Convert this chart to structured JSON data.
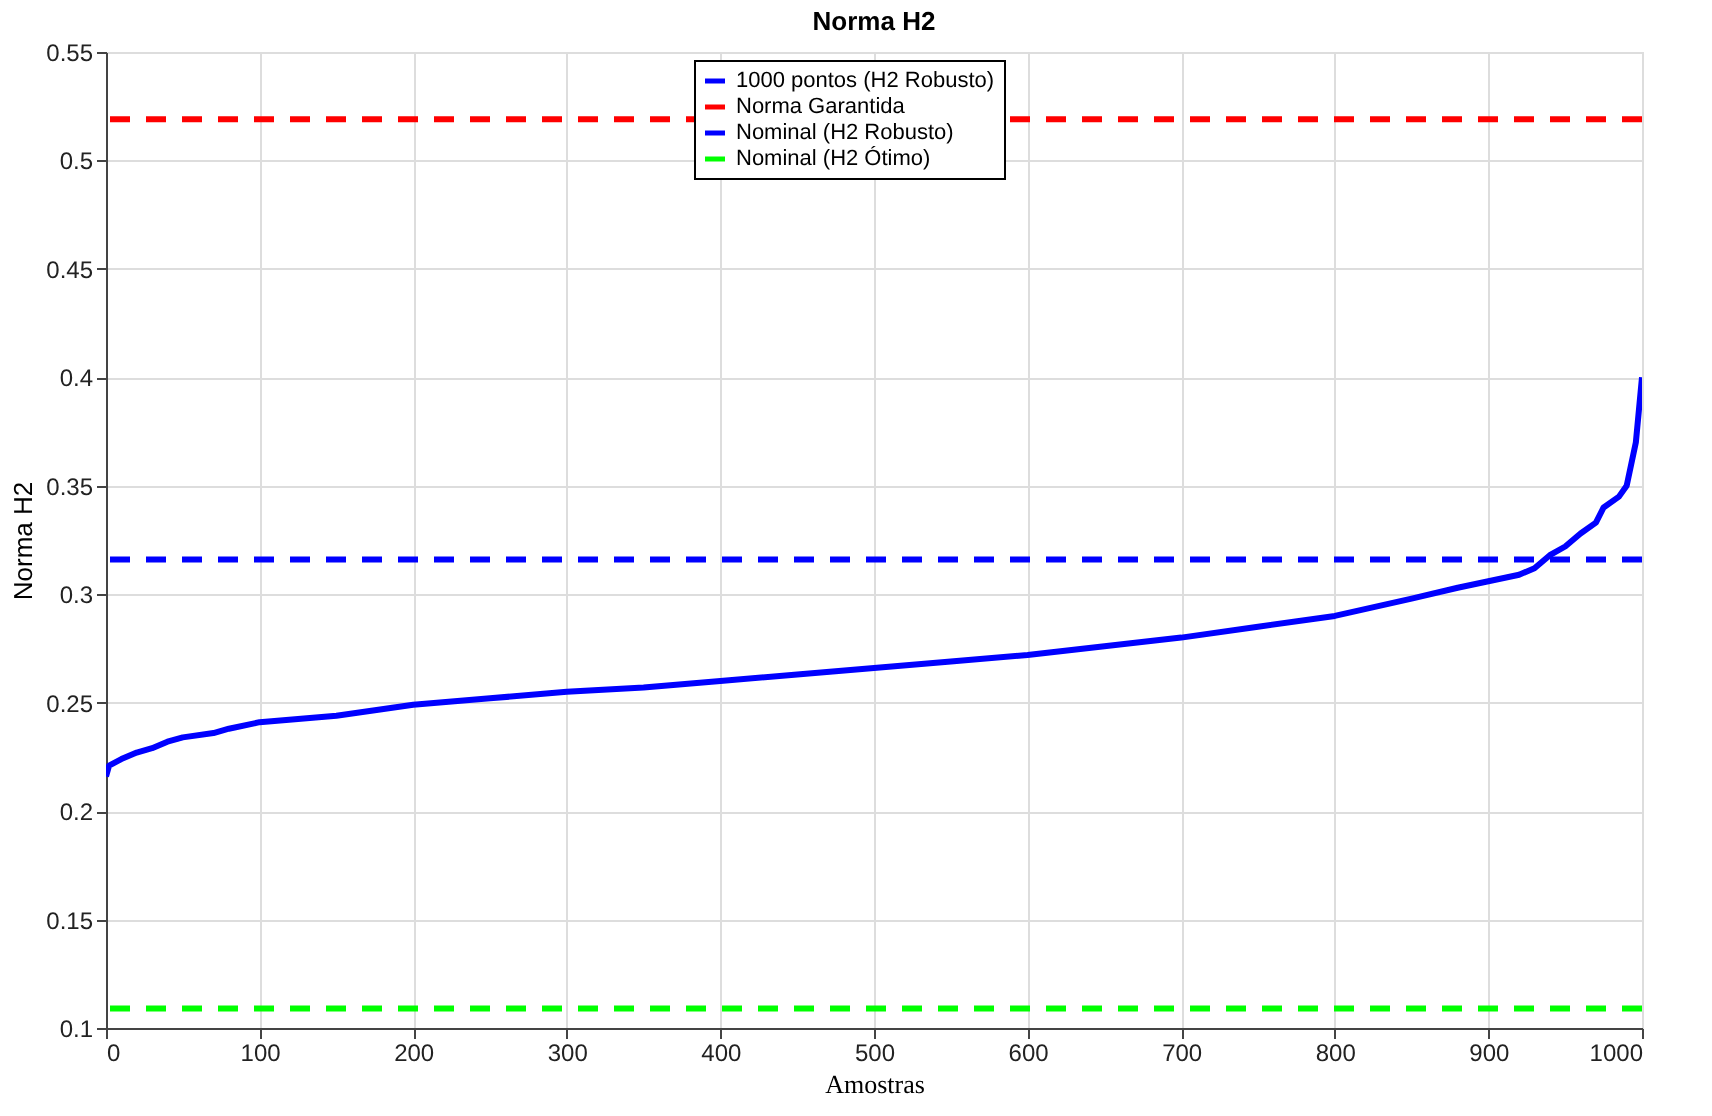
{
  "chart_data": {
    "type": "line",
    "title": "Norma H2",
    "xlabel": "Amostras",
    "ylabel": "Norma H2",
    "x": [
      0,
      2,
      10,
      20,
      30,
      40,
      50,
      70,
      80,
      100,
      150,
      200,
      250,
      300,
      350,
      400,
      450,
      500,
      550,
      600,
      650,
      700,
      750,
      800,
      850,
      880,
      900,
      920,
      930,
      940,
      950,
      960,
      970,
      975,
      985,
      990,
      993,
      996,
      998,
      1000
    ],
    "series": [
      {
        "name": "1000 pontos (H2 Robusto)",
        "color": "#0000ff",
        "values": [
          0.216,
          0.221,
          0.224,
          0.227,
          0.229,
          0.232,
          0.234,
          0.236,
          0.238,
          0.241,
          0.244,
          0.249,
          0.252,
          0.255,
          0.257,
          0.26,
          0.263,
          0.266,
          0.269,
          0.272,
          0.276,
          0.28,
          0.285,
          0.29,
          0.298,
          0.303,
          0.306,
          0.309,
          0.312,
          0.318,
          0.322,
          0.328,
          0.333,
          0.34,
          0.345,
          0.35,
          0.36,
          0.37,
          0.385,
          0.4
        ]
      }
    ],
    "ref_lines": [
      {
        "axis": "y",
        "value": 0.519,
        "label": "Norma Garantida",
        "color": "#ff0000",
        "line_style": "dashed"
      },
      {
        "axis": "y",
        "value": 0.316,
        "label": "Nominal (H2 Robusto)",
        "color": "#0000ff",
        "line_style": "dashed"
      },
      {
        "axis": "y",
        "value": 0.109,
        "label": "Nominal (H2 Ótimo)",
        "color": "#00ff00",
        "line_style": "dashed"
      }
    ],
    "xlim": [
      0,
      1000
    ],
    "xticks": [
      0,
      100,
      200,
      300,
      400,
      500,
      600,
      700,
      800,
      900,
      1000
    ],
    "ylim": [
      0.1,
      0.55
    ],
    "yticks": [
      0.1,
      0.15,
      0.2,
      0.25,
      0.3,
      0.35,
      0.4,
      0.45,
      0.5,
      0.55
    ],
    "grid": true,
    "legend": "top",
    "line_style": "solid"
  }
}
